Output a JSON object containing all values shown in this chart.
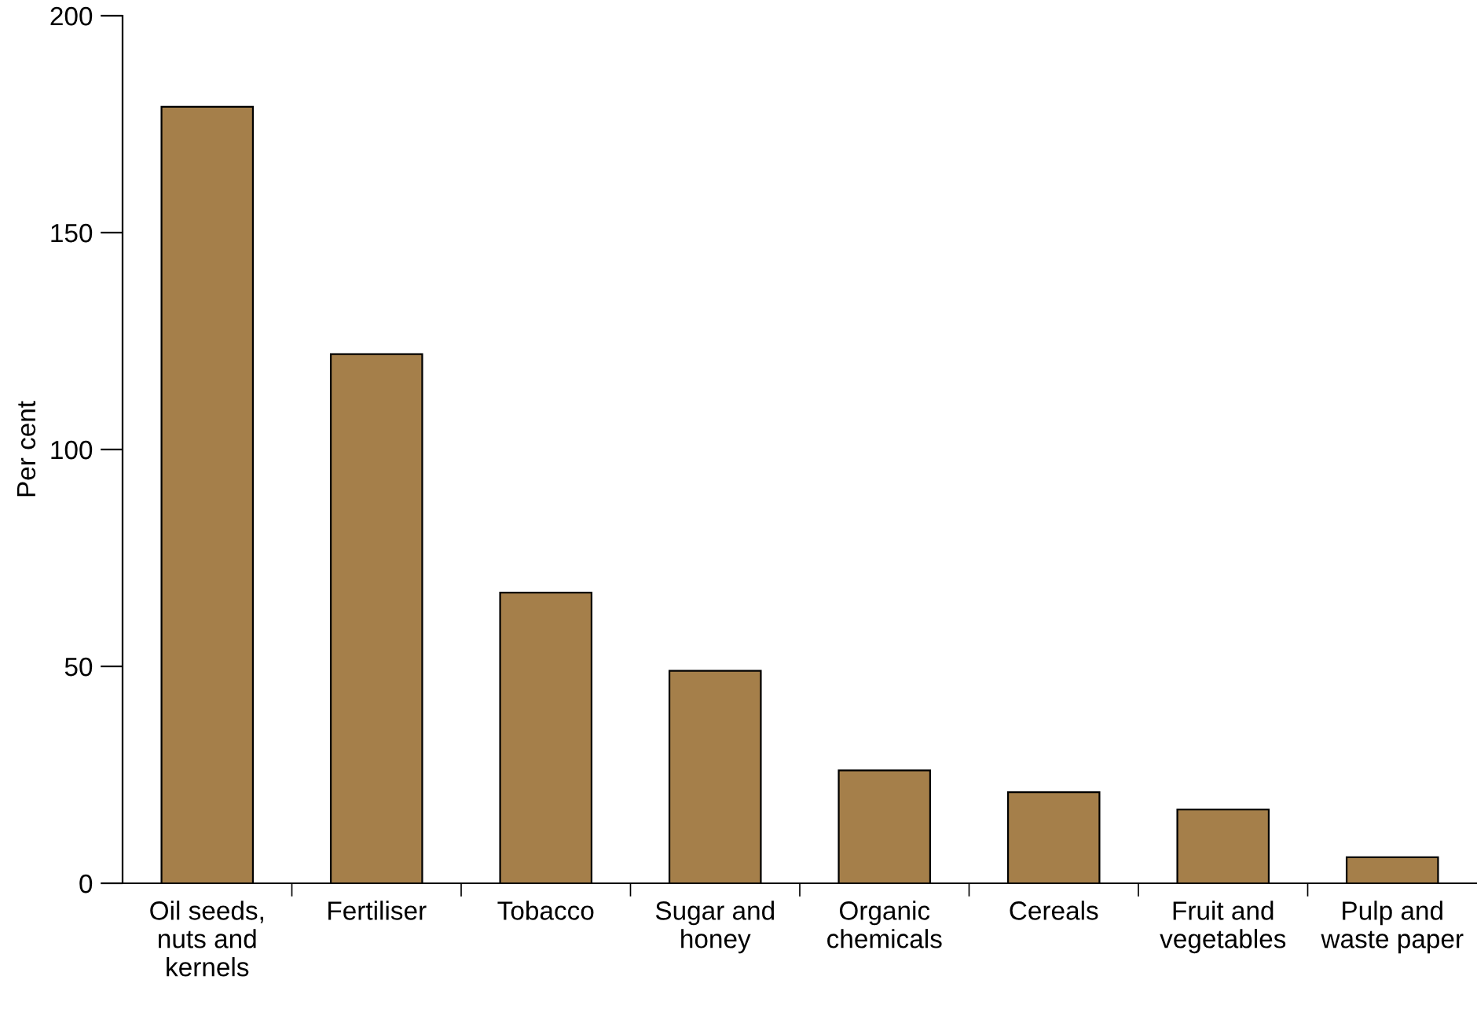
{
  "chart_data": {
    "type": "bar",
    "ylabel": "Per cent",
    "categories": [
      "Oil seeds,\nnuts and\nkernels",
      "Fertiliser",
      "Tobacco",
      "Sugar and\nhoney",
      "Organic\nchemicals",
      "Cereals",
      "Fruit and\nvegetables",
      "Pulp and\nwaste paper"
    ],
    "values": [
      179,
      122,
      67,
      49,
      26,
      21,
      17,
      6
    ],
    "color": "#a57f4a",
    "ylim": [
      0,
      200
    ],
    "yticks": [
      0,
      50,
      100,
      150,
      200
    ],
    "grid": false,
    "legend": false
  }
}
